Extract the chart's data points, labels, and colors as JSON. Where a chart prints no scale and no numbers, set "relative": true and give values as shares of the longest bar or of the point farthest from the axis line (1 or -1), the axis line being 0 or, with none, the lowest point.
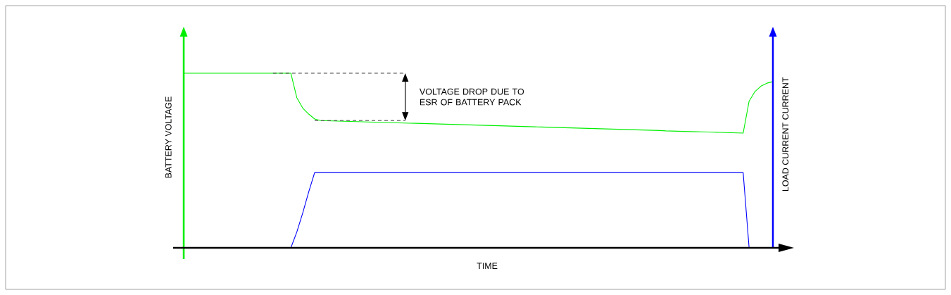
{
  "chart_data": {
    "type": "line",
    "relative": true,
    "xlabel": "TIME",
    "ylabel": "BATTERY VOLTAGE",
    "y2label": "LOAD CURRENT CURRENT",
    "annotations": [
      "VOLTAGE DROP DUE TO ESR OF BATTERY PACK"
    ],
    "categories": [
      null,
      null,
      null,
      null,
      null,
      null,
      null,
      null,
      null,
      null,
      null,
      null,
      null,
      null,
      null,
      null,
      null,
      null,
      null,
      null,
      null,
      null,
      null,
      null,
      null,
      null,
      null,
      null,
      null,
      null,
      null,
      null,
      null,
      null,
      null,
      null,
      null,
      null,
      null,
      null,
      null,
      null,
      null,
      null,
      null,
      null,
      null,
      null,
      null,
      null,
      null,
      null,
      null,
      null,
      null,
      null,
      null,
      null,
      null,
      null,
      null,
      null,
      null,
      null,
      null,
      null,
      null,
      null,
      null,
      null,
      null,
      null,
      null,
      null,
      null,
      null,
      null,
      null,
      null,
      null,
      null,
      null,
      null,
      null,
      null,
      null,
      null,
      null,
      null,
      null,
      null,
      null,
      null,
      null,
      null,
      null,
      null,
      null,
      null,
      null
    ],
    "series": [
      {
        "color": "#00ee00",
        "values": [
          1,
          1,
          1,
          1,
          1,
          1,
          1,
          1,
          1,
          1,
          1,
          1,
          1,
          1,
          1,
          1,
          1,
          1,
          1,
          0.86,
          0.8,
          0.766,
          0.738,
          0.729,
          0.728,
          0.727,
          0.726,
          0.725,
          0.724,
          0.723,
          0.722,
          0.721,
          0.72,
          0.719,
          0.718,
          0.717,
          0.716,
          0.715,
          0.714,
          0.713,
          0.712,
          0.711,
          0.71,
          0.709,
          0.708,
          0.707,
          0.706,
          0.705,
          0.704,
          0.703,
          0.702,
          0.701,
          0.7,
          0.699,
          0.698,
          0.697,
          0.696,
          0.695,
          0.694,
          0.693,
          0.692,
          0.691,
          0.69,
          0.689,
          0.688,
          0.687,
          0.686,
          0.685,
          0.684,
          0.683,
          0.682,
          0.681,
          0.68,
          0.679,
          0.678,
          0.677,
          0.676,
          0.675,
          0.674,
          0.673,
          0.672,
          0.67,
          0.669,
          0.668,
          0.667,
          0.666,
          0.665,
          0.664,
          0.663,
          0.662,
          0.661,
          0.66,
          0.659,
          0.658,
          0.657,
          0.84,
          0.896,
          0.926,
          0.943,
          0.952
        ]
      },
      {
        "color": "#0000ff",
        "values": [
          null,
          null,
          null,
          null,
          null,
          null,
          null,
          null,
          null,
          null,
          null,
          null,
          null,
          null,
          null,
          null,
          null,
          null,
          0,
          0.09,
          0.2,
          0.32,
          0.431,
          0.431,
          0.431,
          0.431,
          0.431,
          0.431,
          0.431,
          0.431,
          0.431,
          0.431,
          0.431,
          0.431,
          0.431,
          0.431,
          0.431,
          0.431,
          0.431,
          0.431,
          0.431,
          0.431,
          0.431,
          0.431,
          0.431,
          0.431,
          0.431,
          0.431,
          0.431,
          0.431,
          0.431,
          0.431,
          0.431,
          0.431,
          0.431,
          0.431,
          0.431,
          0.431,
          0.431,
          0.431,
          0.431,
          0.431,
          0.431,
          0.431,
          0.431,
          0.431,
          0.431,
          0.431,
          0.431,
          0.431,
          0.431,
          0.431,
          0.431,
          0.431,
          0.431,
          0.431,
          0.431,
          0.431,
          0.431,
          0.431,
          0.431,
          0.431,
          0.431,
          0.431,
          0.431,
          0.431,
          0.431,
          0.431,
          0.431,
          0.431,
          0.431,
          0.431,
          0.431,
          0.431,
          0.431,
          0,
          null,
          null,
          null,
          null
        ]
      }
    ]
  }
}
